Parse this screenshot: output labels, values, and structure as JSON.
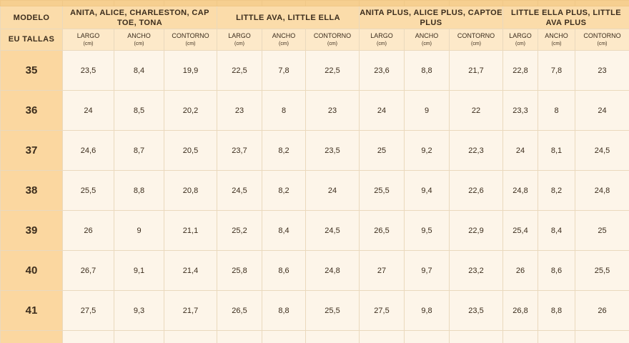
{
  "table": {
    "model_label": "MODELO",
    "size_label": "EU TALLAS",
    "groups": [
      "ANITA, ALICE, CHARLESTON, CAP TOE, TONA",
      "LITTLE AVA, LITTLE ELLA",
      "ANITA PLUS, ALICE PLUS, CAPTOE PLUS",
      "LITTLE ELLA PLUS, LITTLE AVA PLUS"
    ],
    "columns": [
      {
        "label": "LARGO",
        "unit": "(cm)"
      },
      {
        "label": "ANCHO",
        "unit": "(cm)"
      },
      {
        "label": "CONTORNO",
        "unit": "(cm)"
      },
      {
        "label": "LARGO",
        "unit": "(cm)"
      },
      {
        "label": "ANCHO",
        "unit": "(cm)"
      },
      {
        "label": "CONTORNO",
        "unit": "(cm)"
      },
      {
        "label": "LARGO",
        "unit": "(cm)"
      },
      {
        "label": "ANCHO",
        "unit": "(cm)"
      },
      {
        "label": "CONTORNO",
        "unit": "(cm)"
      },
      {
        "label": "LARGO",
        "unit": "(cm)"
      },
      {
        "label": "ANCHO",
        "unit": "(cm)"
      },
      {
        "label": "CONTORNO",
        "unit": "(cm)"
      }
    ],
    "rows": [
      {
        "size": "35",
        "values": [
          "23,5",
          "8,4",
          "19,9",
          "22,5",
          "7,8",
          "22,5",
          "23,6",
          "8,8",
          "21,7",
          "22,8",
          "7,8",
          "23"
        ]
      },
      {
        "size": "36",
        "values": [
          "24",
          "8,5",
          "20,2",
          "23",
          "8",
          "23",
          "24",
          "9",
          "22",
          "23,3",
          "8",
          "24"
        ]
      },
      {
        "size": "37",
        "values": [
          "24,6",
          "8,7",
          "20,5",
          "23,7",
          "8,2",
          "23,5",
          "25",
          "9,2",
          "22,3",
          "24",
          "8,1",
          "24,5"
        ]
      },
      {
        "size": "38",
        "values": [
          "25,5",
          "8,8",
          "20,8",
          "24,5",
          "8,2",
          "24",
          "25,5",
          "9,4",
          "22,6",
          "24,8",
          "8,2",
          "24,8"
        ]
      },
      {
        "size": "39",
        "values": [
          "26",
          "9",
          "21,1",
          "25,2",
          "8,4",
          "24,5",
          "26,5",
          "9,5",
          "22,9",
          "25,4",
          "8,4",
          "25"
        ]
      },
      {
        "size": "40",
        "values": [
          "26,7",
          "9,1",
          "21,4",
          "25,8",
          "8,6",
          "24,8",
          "27",
          "9,7",
          "23,2",
          "26",
          "8,6",
          "25,5"
        ]
      },
      {
        "size": "41",
        "values": [
          "27,5",
          "9,3",
          "21,7",
          "26,5",
          "8,8",
          "25,5",
          "27,5",
          "9,8",
          "23,5",
          "26,8",
          "8,8",
          "26"
        ]
      }
    ]
  }
}
